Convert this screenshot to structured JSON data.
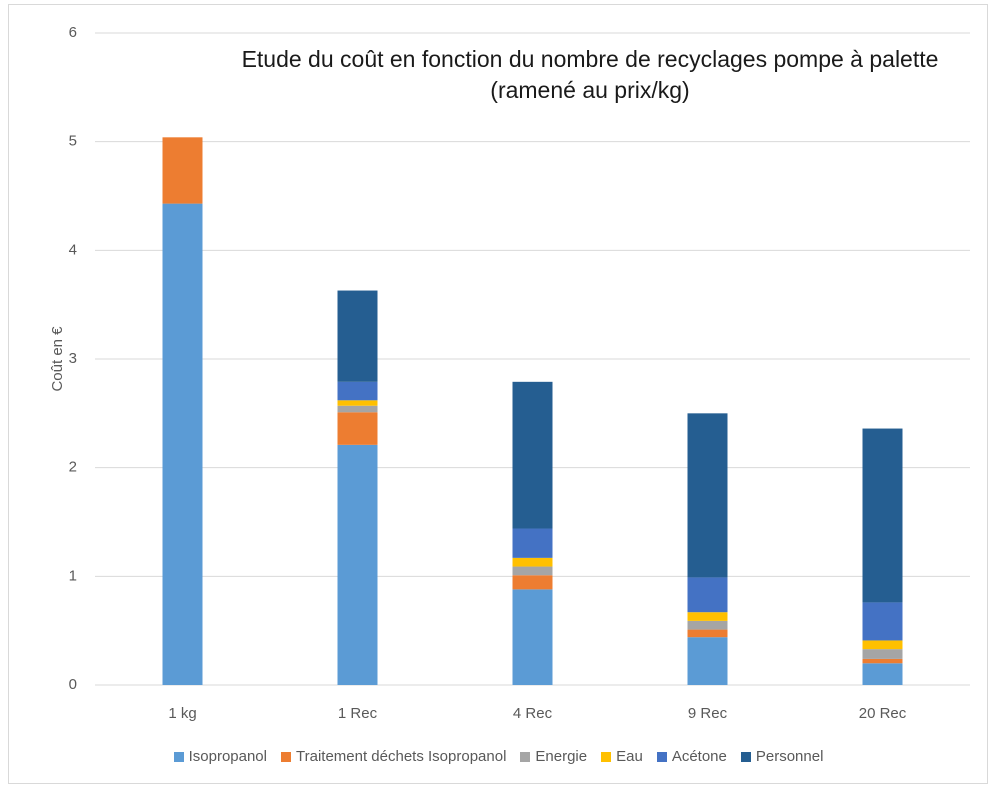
{
  "chart_data": {
    "type": "stacked_bar",
    "title": "Etude du coût en fonction du nombre de recyclages pompe à palette (ramené au prix/kg)",
    "y_label": "Coût en €",
    "categories": [
      "1 kg",
      "1 Rec",
      "4 Rec",
      "9 Rec",
      "20 Rec"
    ],
    "series": [
      {
        "name": "Isopropanol",
        "color": "#5b9bd5",
        "values": [
          4.43,
          2.21,
          0.88,
          0.44,
          0.2
        ]
      },
      {
        "name": "Traitement déchets Isopropanol",
        "color": "#ed7d31",
        "values": [
          0.61,
          0.3,
          0.13,
          0.07,
          0.04
        ]
      },
      {
        "name": "Energie",
        "color": "#a5a5a5",
        "values": [
          0,
          0.06,
          0.08,
          0.08,
          0.09
        ]
      },
      {
        "name": "Eau",
        "color": "#ffc000",
        "values": [
          0,
          0.05,
          0.08,
          0.08,
          0.08
        ]
      },
      {
        "name": "Acétone",
        "color": "#4472c4",
        "values": [
          0,
          0.17,
          0.27,
          0.32,
          0.35
        ]
      },
      {
        "name": "Personnel",
        "color": "#255e91",
        "values": [
          0,
          0.84,
          1.35,
          1.51,
          1.6
        ]
      }
    ],
    "ylim": [
      0,
      6
    ],
    "yticks": [
      0,
      1,
      2,
      3,
      4,
      5,
      6
    ],
    "grid": true,
    "legend": "bottom"
  }
}
